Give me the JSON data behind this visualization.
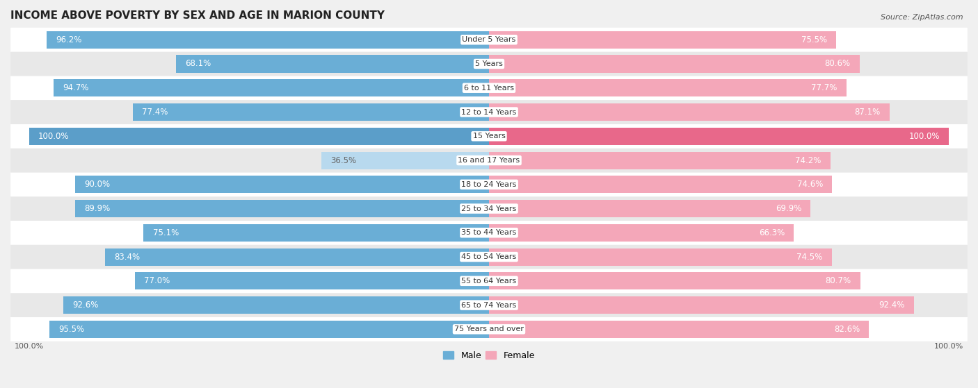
{
  "title": "INCOME ABOVE POVERTY BY SEX AND AGE IN MARION COUNTY",
  "source": "Source: ZipAtlas.com",
  "categories": [
    "Under 5 Years",
    "5 Years",
    "6 to 11 Years",
    "12 to 14 Years",
    "15 Years",
    "16 and 17 Years",
    "18 to 24 Years",
    "25 to 34 Years",
    "35 to 44 Years",
    "45 to 54 Years",
    "55 to 64 Years",
    "65 to 74 Years",
    "75 Years and over"
  ],
  "male_values": [
    96.2,
    68.1,
    94.7,
    77.4,
    100.0,
    36.5,
    90.0,
    89.9,
    75.1,
    83.4,
    77.0,
    92.6,
    95.5
  ],
  "female_values": [
    75.5,
    80.6,
    77.7,
    87.1,
    100.0,
    74.2,
    74.6,
    69.9,
    66.3,
    74.5,
    80.7,
    92.4,
    82.6
  ],
  "male_color_normal": "#6aaed6",
  "male_color_full": "#5b9ec9",
  "male_color_light": "#b8d9ee",
  "female_color_normal": "#f4a7b9",
  "female_color_full": "#e8688a",
  "male_label": "Male",
  "female_label": "Female",
  "max_value": 100.0,
  "background_color": "#f0f0f0",
  "row_color_odd": "#ffffff",
  "row_color_even": "#e8e8e8",
  "title_fontsize": 11,
  "label_fontsize": 8.5,
  "bar_height": 0.72,
  "x_axis_label_left": "100.0%",
  "x_axis_label_right": "100.0%"
}
